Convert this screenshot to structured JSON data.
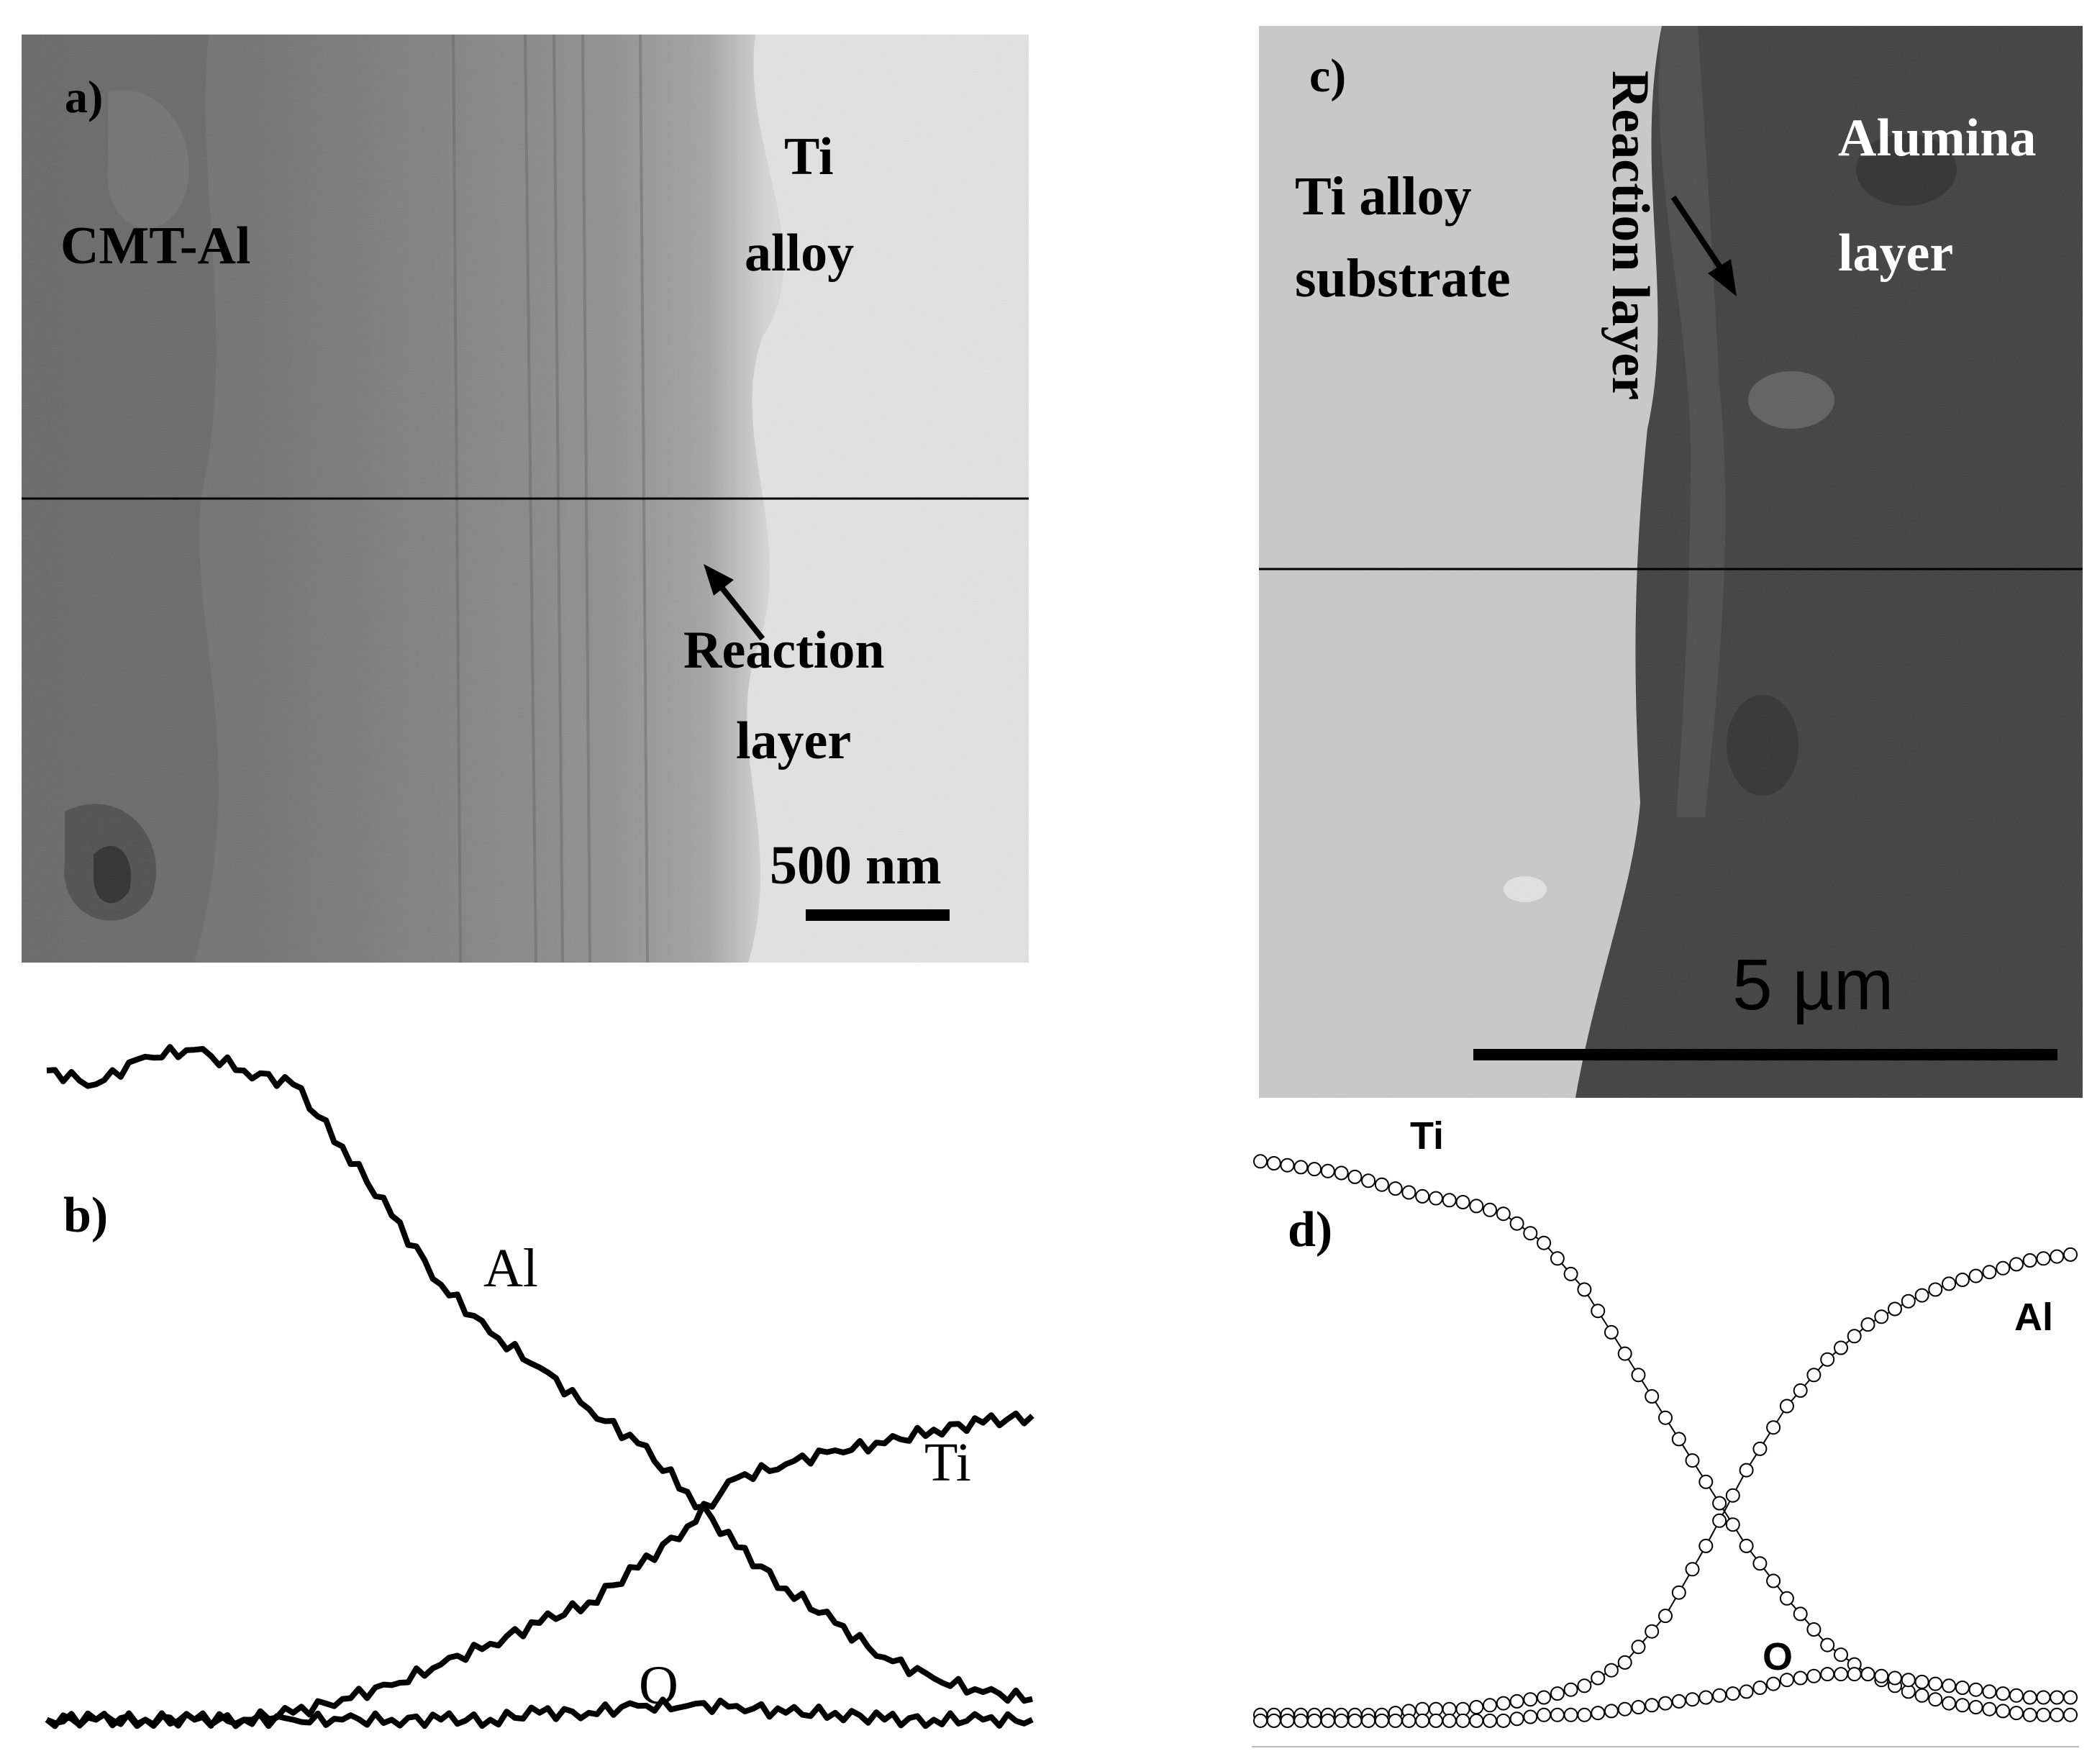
{
  "figure": {
    "panel_a": {
      "label": "a)",
      "region_left": "CMT-Al",
      "region_right_line1": "Ti",
      "region_right_line2": "alloy",
      "arrow_label_line1": "Reaction",
      "arrow_label_line2": "layer",
      "scale_bar": "500 nm"
    },
    "panel_b": {
      "label": "b)",
      "series": [
        "Al",
        "Ti",
        "O"
      ]
    },
    "panel_c": {
      "label": "c)",
      "region_left_line1": "Ti alloy",
      "region_left_line2": "substrate",
      "arrow_label": "Reaction layer",
      "region_right_line1": "Alumina",
      "region_right_line2": "layer",
      "scale_bar": "5 µm"
    },
    "panel_d": {
      "label": "d)",
      "series": [
        "Ti",
        "Al",
        "O"
      ]
    }
  },
  "chart_data": [
    {
      "type": "line",
      "panel": "b",
      "x": [
        0,
        5,
        10,
        15,
        20,
        25,
        30,
        35,
        40,
        45,
        50,
        55,
        60,
        65,
        70,
        75,
        80,
        85,
        90,
        95,
        100
      ],
      "series": [
        {
          "name": "Al",
          "values": [
            95,
            93,
            97,
            98,
            95,
            93,
            84,
            74,
            64,
            57,
            52,
            46,
            41,
            34,
            26,
            20,
            15,
            10,
            7,
            5,
            4
          ]
        },
        {
          "name": "Ti",
          "values": [
            1,
            1,
            1,
            1,
            1,
            2,
            4,
            6,
            9,
            12,
            15,
            18,
            23,
            29,
            36,
            38,
            40,
            41,
            43,
            44,
            45
          ]
        },
        {
          "name": "O",
          "values": [
            1,
            1,
            1,
            1,
            1,
            1,
            1,
            1,
            1,
            1,
            2,
            2,
            3,
            3,
            3,
            2,
            2,
            1,
            1,
            1,
            1
          ]
        }
      ]
    },
    {
      "type": "line",
      "panel": "d",
      "x": [
        0,
        5,
        10,
        15,
        20,
        25,
        30,
        35,
        40,
        45,
        50,
        55,
        60,
        65,
        70,
        75,
        80,
        85,
        90,
        95,
        100
      ],
      "series": [
        {
          "name": "Ti",
          "values": [
            97,
            96,
            95,
            93,
            91,
            90,
            88,
            83,
            75,
            64,
            53,
            42,
            31,
            22,
            14,
            9,
            6,
            4,
            3,
            2,
            2
          ]
        },
        {
          "name": "Al",
          "values": [
            2,
            2,
            2,
            2,
            3,
            3,
            4,
            5,
            7,
            11,
            19,
            31,
            44,
            55,
            63,
            69,
            73,
            76,
            78,
            80,
            81
          ]
        },
        {
          "name": "O",
          "values": [
            1,
            1,
            1,
            1,
            1,
            1,
            1,
            2,
            2,
            3,
            4,
            5,
            6,
            8,
            9,
            9,
            8,
            7,
            6,
            5,
            5
          ]
        }
      ]
    }
  ]
}
